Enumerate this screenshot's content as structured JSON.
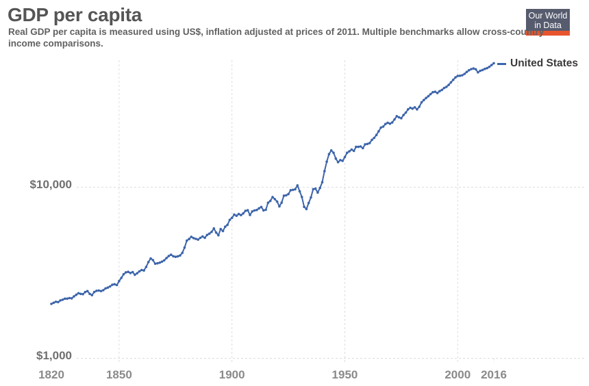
{
  "header": {
    "title": "GDP per capita",
    "subtitle": "Real GDP per capita is measured using US$, inflation adjusted at prices of 2011. Multiple benchmarks allow cross-country income comparisons.",
    "logo": {
      "line1": "Our World",
      "line2": "in Data",
      "bg_color": "#565b6e",
      "accent_color": "#e8542e"
    }
  },
  "legend": {
    "label": "United States",
    "color": "#3c64aa"
  },
  "chart_data": {
    "type": "line",
    "title": "GDP per capita",
    "xlabel": "",
    "ylabel": "",
    "y_scale": "log",
    "x_range": [
      1820,
      2016
    ],
    "y_range": [
      1000,
      60000
    ],
    "grid": "dashed",
    "legend_position": "right-of-line-end",
    "y_ticks": [
      {
        "value": 1000,
        "label": "$1,000"
      },
      {
        "value": 10000,
        "label": "$10,000"
      }
    ],
    "x_ticks": [
      {
        "year": 1820,
        "label": "1820",
        "grid": false,
        "tick": false
      },
      {
        "year": 1850,
        "label": "1850",
        "grid": true,
        "tick": true
      },
      {
        "year": 1900,
        "label": "1900",
        "grid": true,
        "tick": true
      },
      {
        "year": 1950,
        "label": "1950",
        "grid": true,
        "tick": true
      },
      {
        "year": 2000,
        "label": "2000",
        "grid": true,
        "tick": true
      },
      {
        "year": 2016,
        "label": "2016",
        "grid": false,
        "tick": true
      }
    ],
    "series": [
      {
        "name": "United States",
        "color": "#3c64aa",
        "points": [
          [
            1820,
            2080
          ],
          [
            1821,
            2110
          ],
          [
            1822,
            2140
          ],
          [
            1823,
            2130
          ],
          [
            1824,
            2180
          ],
          [
            1825,
            2200
          ],
          [
            1826,
            2230
          ],
          [
            1827,
            2230
          ],
          [
            1828,
            2250
          ],
          [
            1829,
            2240
          ],
          [
            1830,
            2300
          ],
          [
            1831,
            2350
          ],
          [
            1832,
            2400
          ],
          [
            1833,
            2380
          ],
          [
            1834,
            2370
          ],
          [
            1835,
            2440
          ],
          [
            1836,
            2470
          ],
          [
            1837,
            2380
          ],
          [
            1838,
            2340
          ],
          [
            1839,
            2440
          ],
          [
            1840,
            2480
          ],
          [
            1841,
            2490
          ],
          [
            1842,
            2470
          ],
          [
            1843,
            2500
          ],
          [
            1844,
            2560
          ],
          [
            1845,
            2590
          ],
          [
            1846,
            2630
          ],
          [
            1847,
            2690
          ],
          [
            1848,
            2710
          ],
          [
            1849,
            2680
          ],
          [
            1850,
            2825
          ],
          [
            1851,
            2950
          ],
          [
            1852,
            3100
          ],
          [
            1853,
            3180
          ],
          [
            1854,
            3200
          ],
          [
            1855,
            3150
          ],
          [
            1856,
            3190
          ],
          [
            1857,
            3080
          ],
          [
            1858,
            3140
          ],
          [
            1859,
            3220
          ],
          [
            1860,
            3280
          ],
          [
            1861,
            3260
          ],
          [
            1862,
            3420
          ],
          [
            1863,
            3650
          ],
          [
            1864,
            3830
          ],
          [
            1865,
            3750
          ],
          [
            1866,
            3570
          ],
          [
            1867,
            3590
          ],
          [
            1868,
            3620
          ],
          [
            1869,
            3670
          ],
          [
            1870,
            3736
          ],
          [
            1871,
            3850
          ],
          [
            1872,
            3960
          ],
          [
            1873,
            4030
          ],
          [
            1874,
            3950
          ],
          [
            1875,
            3920
          ],
          [
            1876,
            3940
          ],
          [
            1877,
            3990
          ],
          [
            1878,
            4130
          ],
          [
            1879,
            4440
          ],
          [
            1880,
            4870
          ],
          [
            1881,
            4980
          ],
          [
            1882,
            5130
          ],
          [
            1883,
            5040
          ],
          [
            1884,
            4990
          ],
          [
            1885,
            4940
          ],
          [
            1886,
            5060
          ],
          [
            1887,
            5150
          ],
          [
            1888,
            5060
          ],
          [
            1889,
            5260
          ],
          [
            1890,
            5350
          ],
          [
            1891,
            5480
          ],
          [
            1892,
            5740
          ],
          [
            1893,
            5430
          ],
          [
            1894,
            5240
          ],
          [
            1895,
            5690
          ],
          [
            1896,
            5540
          ],
          [
            1897,
            5880
          ],
          [
            1898,
            6020
          ],
          [
            1899,
            6440
          ],
          [
            1900,
            6621
          ],
          [
            1901,
            6910
          ],
          [
            1902,
            6810
          ],
          [
            1903,
            6970
          ],
          [
            1904,
            6870
          ],
          [
            1905,
            7030
          ],
          [
            1906,
            7270
          ],
          [
            1907,
            7330
          ],
          [
            1908,
            6880
          ],
          [
            1909,
            7220
          ],
          [
            1910,
            7310
          ],
          [
            1911,
            7360
          ],
          [
            1912,
            7520
          ],
          [
            1913,
            7660
          ],
          [
            1914,
            7320
          ],
          [
            1915,
            7380
          ],
          [
            1916,
            8110
          ],
          [
            1917,
            8310
          ],
          [
            1918,
            8760
          ],
          [
            1919,
            8510
          ],
          [
            1920,
            8240
          ],
          [
            1921,
            7720
          ],
          [
            1922,
            8120
          ],
          [
            1923,
            8920
          ],
          [
            1924,
            8960
          ],
          [
            1925,
            9110
          ],
          [
            1926,
            9600
          ],
          [
            1927,
            9650
          ],
          [
            1928,
            9720
          ],
          [
            1929,
            10240
          ],
          [
            1930,
            9450
          ],
          [
            1931,
            8760
          ],
          [
            1932,
            7680
          ],
          [
            1933,
            7450
          ],
          [
            1934,
            8080
          ],
          [
            1935,
            8720
          ],
          [
            1936,
            9740
          ],
          [
            1937,
            9800
          ],
          [
            1938,
            9300
          ],
          [
            1939,
            9900
          ],
          [
            1940,
            10700
          ],
          [
            1941,
            12400
          ],
          [
            1942,
            14100
          ],
          [
            1943,
            15600
          ],
          [
            1944,
            16400
          ],
          [
            1945,
            15900
          ],
          [
            1946,
            14700
          ],
          [
            1947,
            14000
          ],
          [
            1948,
            14400
          ],
          [
            1949,
            14250
          ],
          [
            1950,
            15000
          ],
          [
            1951,
            15900
          ],
          [
            1952,
            16200
          ],
          [
            1953,
            16600
          ],
          [
            1954,
            16300
          ],
          [
            1955,
            17200
          ],
          [
            1956,
            17200
          ],
          [
            1957,
            17300
          ],
          [
            1958,
            16900
          ],
          [
            1959,
            17800
          ],
          [
            1960,
            17900
          ],
          [
            1961,
            18100
          ],
          [
            1962,
            18900
          ],
          [
            1963,
            19400
          ],
          [
            1964,
            20200
          ],
          [
            1965,
            21200
          ],
          [
            1966,
            22300
          ],
          [
            1967,
            22600
          ],
          [
            1968,
            23400
          ],
          [
            1969,
            23800
          ],
          [
            1970,
            23500
          ],
          [
            1971,
            23900
          ],
          [
            1972,
            24900
          ],
          [
            1973,
            26000
          ],
          [
            1974,
            25600
          ],
          [
            1975,
            25300
          ],
          [
            1976,
            26400
          ],
          [
            1977,
            27300
          ],
          [
            1978,
            28500
          ],
          [
            1979,
            29100
          ],
          [
            1980,
            28800
          ],
          [
            1981,
            29300
          ],
          [
            1982,
            28500
          ],
          [
            1983,
            29500
          ],
          [
            1984,
            31300
          ],
          [
            1985,
            32300
          ],
          [
            1986,
            33200
          ],
          [
            1987,
            34000
          ],
          [
            1988,
            35000
          ],
          [
            1989,
            35900
          ],
          [
            1990,
            36100
          ],
          [
            1991,
            35500
          ],
          [
            1992,
            36400
          ],
          [
            1993,
            37000
          ],
          [
            1994,
            38000
          ],
          [
            1995,
            38600
          ],
          [
            1996,
            39600
          ],
          [
            1997,
            41000
          ],
          [
            1998,
            42400
          ],
          [
            1999,
            43800
          ],
          [
            2000,
            44700
          ],
          [
            2001,
            44800
          ],
          [
            2002,
            45100
          ],
          [
            2003,
            45900
          ],
          [
            2004,
            47100
          ],
          [
            2005,
            48200
          ],
          [
            2006,
            49000
          ],
          [
            2007,
            49400
          ],
          [
            2008,
            48900
          ],
          [
            2009,
            46900
          ],
          [
            2010,
            47900
          ],
          [
            2011,
            48400
          ],
          [
            2012,
            49100
          ],
          [
            2013,
            49600
          ],
          [
            2014,
            50500
          ],
          [
            2015,
            51700
          ],
          [
            2016,
            53015
          ]
        ]
      }
    ]
  }
}
